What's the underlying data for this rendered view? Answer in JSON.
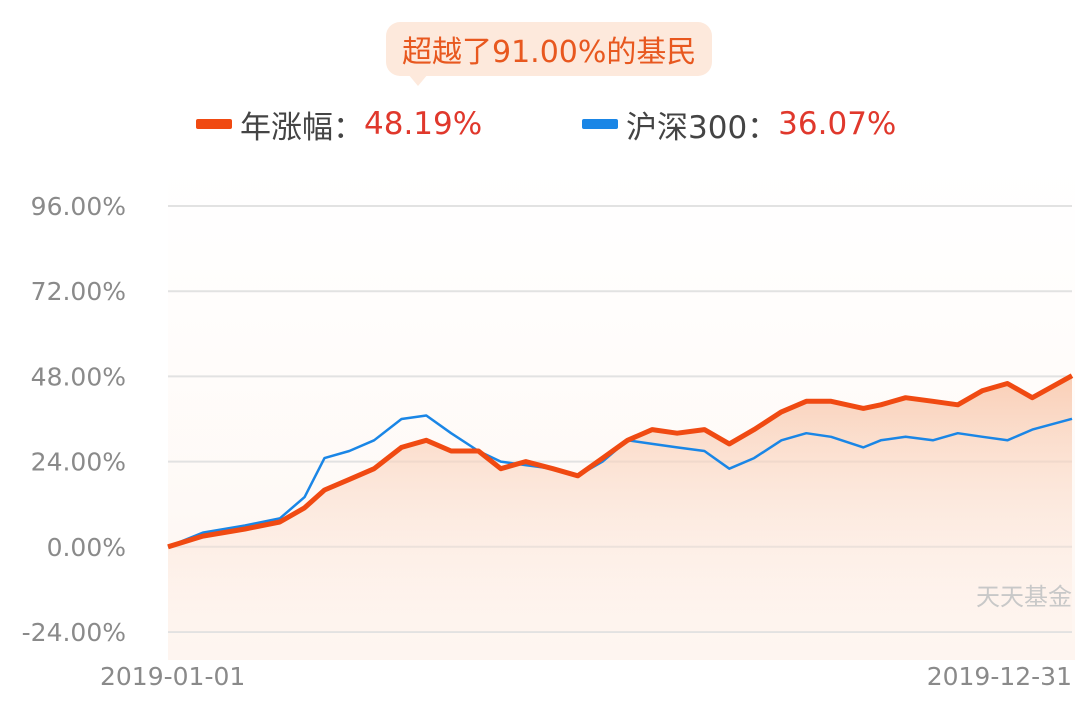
{
  "badge": {
    "text": "超越了91.00%的基民"
  },
  "legend": [
    {
      "name": "年涨幅：",
      "value": "48.19%",
      "color": "#f04a12"
    },
    {
      "name": "沪深300：",
      "value": "36.07%",
      "color": "#1a86e6"
    }
  ],
  "watermark": "天天基金",
  "chart_data": {
    "type": "line",
    "title": "",
    "xlabel": "",
    "ylabel": "",
    "x_tick_labels": [
      "2019-01-01",
      "2019-12-31"
    ],
    "y_tick_labels": [
      "96.00%",
      "72.00%",
      "48.00%",
      "24.00%",
      "0.00%",
      "-24.00%"
    ],
    "y_ticks": [
      96,
      72,
      48,
      24,
      0,
      -24
    ],
    "ylim": [
      -24,
      96
    ],
    "grid": true,
    "legend_position": "top",
    "series": [
      {
        "name": "年涨幅",
        "color": "#f04a12",
        "filled": true,
        "x": [
          "2019-01-01",
          "2019-01-15",
          "2019-02-01",
          "2019-02-15",
          "2019-02-25",
          "2019-03-05",
          "2019-03-15",
          "2019-03-25",
          "2019-04-05",
          "2019-04-15",
          "2019-04-25",
          "2019-05-06",
          "2019-05-15",
          "2019-05-25",
          "2019-06-05",
          "2019-06-15",
          "2019-06-25",
          "2019-07-05",
          "2019-07-15",
          "2019-07-25",
          "2019-08-05",
          "2019-08-15",
          "2019-08-25",
          "2019-09-05",
          "2019-09-15",
          "2019-09-25",
          "2019-10-08",
          "2019-10-15",
          "2019-10-25",
          "2019-11-05",
          "2019-11-15",
          "2019-11-25",
          "2019-12-05",
          "2019-12-15",
          "2019-12-31"
        ],
        "values": [
          0,
          3,
          5,
          7,
          11,
          16,
          19,
          22,
          28,
          30,
          27,
          27,
          22,
          24,
          22,
          20,
          25,
          30,
          33,
          32,
          33,
          29,
          33,
          38,
          41,
          41,
          39,
          40,
          42,
          41,
          40,
          44,
          46,
          42,
          48.19
        ]
      },
      {
        "name": "沪深300",
        "color": "#1a86e6",
        "filled": false,
        "x": [
          "2019-01-01",
          "2019-01-15",
          "2019-02-01",
          "2019-02-15",
          "2019-02-25",
          "2019-03-05",
          "2019-03-15",
          "2019-03-25",
          "2019-04-05",
          "2019-04-15",
          "2019-04-25",
          "2019-05-06",
          "2019-05-15",
          "2019-05-25",
          "2019-06-05",
          "2019-06-15",
          "2019-06-25",
          "2019-07-05",
          "2019-07-15",
          "2019-07-25",
          "2019-08-05",
          "2019-08-15",
          "2019-08-25",
          "2019-09-05",
          "2019-09-15",
          "2019-09-25",
          "2019-10-08",
          "2019-10-15",
          "2019-10-25",
          "2019-11-05",
          "2019-11-15",
          "2019-11-25",
          "2019-12-05",
          "2019-12-15",
          "2019-12-31"
        ],
        "values": [
          0,
          4,
          6,
          8,
          14,
          25,
          27,
          30,
          36,
          37,
          32,
          27,
          24,
          23,
          22,
          20,
          24,
          30,
          29,
          28,
          27,
          22,
          25,
          30,
          32,
          31,
          28,
          30,
          31,
          30,
          32,
          31,
          30,
          33,
          36.07
        ]
      }
    ]
  }
}
